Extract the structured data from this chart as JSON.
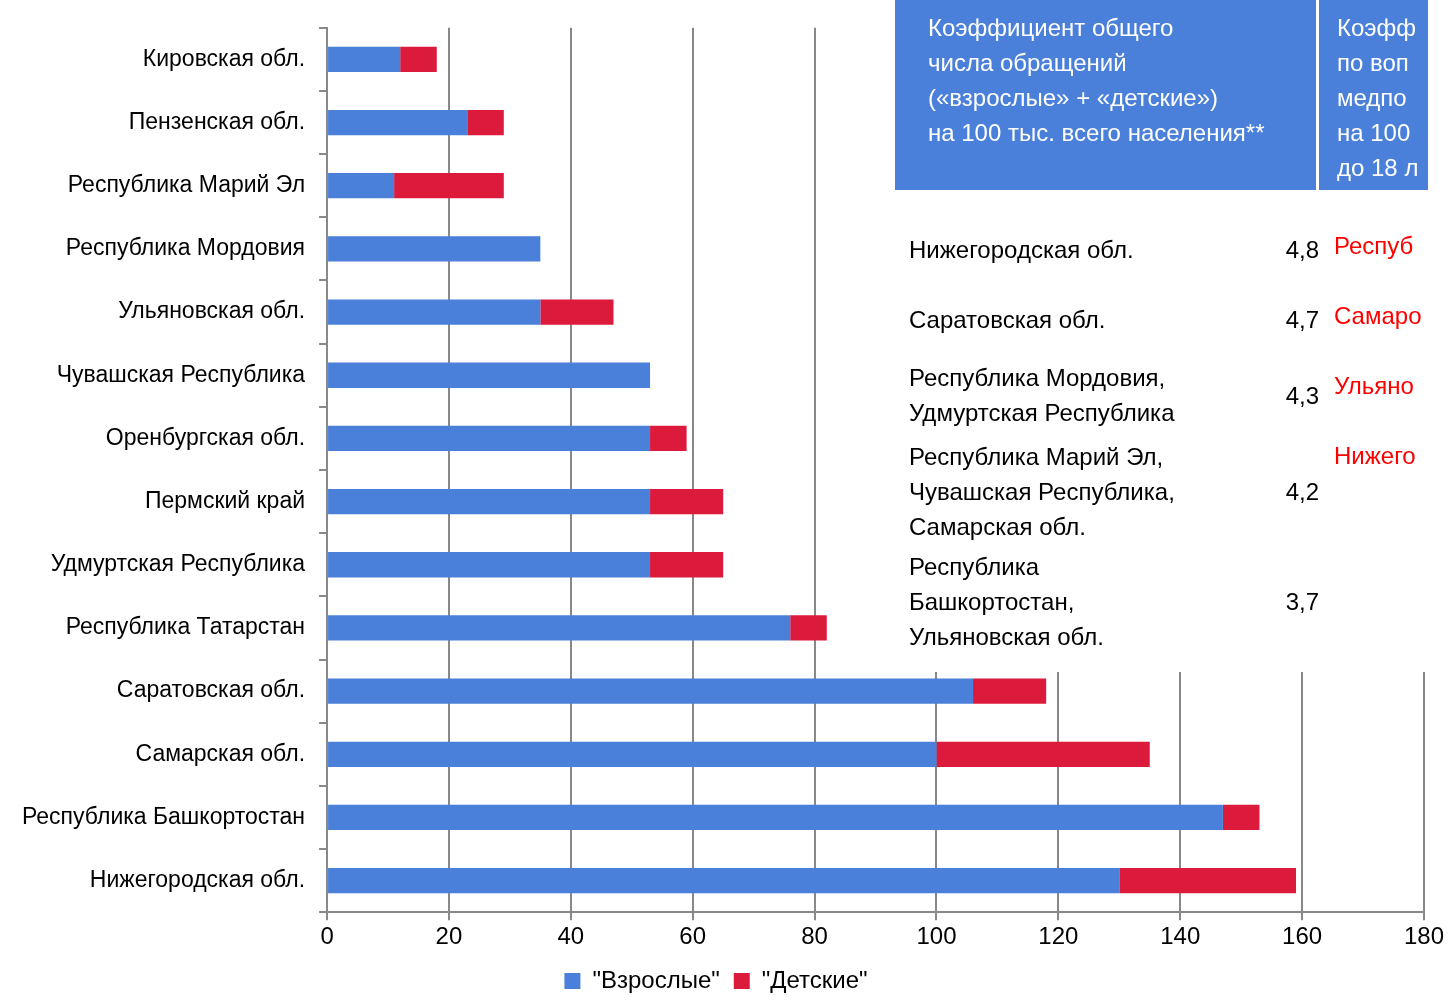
{
  "chart_data": [
    {
      "type": "bar",
      "orientation": "horizontal",
      "stacked": true,
      "categories": [
        "Кировская обл.",
        "Пензенская обл.",
        "Республика Марий Эл",
        "Республика Мордовия",
        "Ульяновская обл.",
        "Чувашская Республика",
        "Оренбургская обл.",
        "Пермский край",
        "Удмуртская Республика",
        "Республика Татарстан",
        "Саратовская обл.",
        "Самарская обл.",
        "Республика Башкортостан",
        "Нижегородская обл."
      ],
      "series": [
        {
          "name": "\"Взрослые\"",
          "color": "#4a80d9",
          "values": [
            12,
            23,
            11,
            35,
            35,
            53,
            53,
            53,
            53,
            76,
            106,
            100,
            147,
            130
          ]
        },
        {
          "name": "\"Детские\"",
          "color": "#dc1a3c",
          "values": [
            6,
            6,
            18,
            0,
            12,
            0,
            6,
            12,
            12,
            6,
            12,
            35,
            6,
            29
          ]
        }
      ],
      "xlim": [
        0,
        180
      ],
      "xticks": [
        0,
        20,
        40,
        60,
        80,
        100,
        120,
        140,
        160,
        180
      ],
      "grid": "x",
      "legend": "bottom"
    },
    {
      "type": "other",
      "title": "Коэффициент общего\nчисла  обращений\n(«взрослые» +  «детские»)\nна 100 тыс. всего населения**",
      "annotations": [
        "Нижегородская обл.",
        "4,8",
        "Саратовская обл.",
        "4,7",
        "Республика Мордовия,\nУдмуртская Республика",
        "4,3",
        "Республика Марий Эл,\nЧувашская Республика,\nСамарская обл.",
        "4,2",
        "Республика\nБашкортостан,\nУльяновская обл.",
        "3,7"
      ]
    },
    {
      "type": "other",
      "title": "Коэфф\nпо воп\nмедпо\nна 100\nдо 18 л",
      "color": "#ff0000",
      "annotations": [
        "Респуб",
        "Самаро",
        "Ульяно",
        "Нижего"
      ]
    }
  ]
}
